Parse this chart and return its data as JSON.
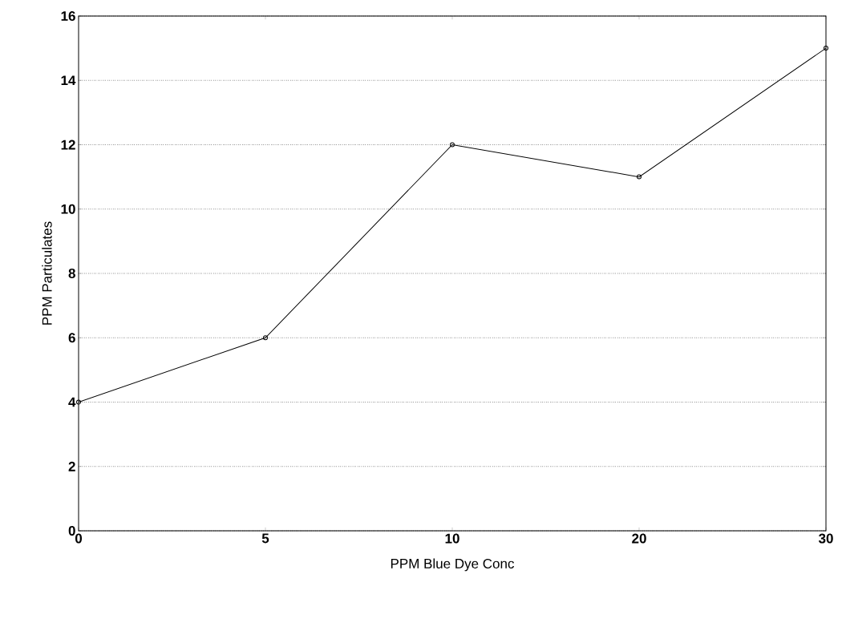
{
  "chart_data": {
    "type": "line",
    "xlabel": "PPM Blue Dye Conc",
    "ylabel": "PPM Particulates",
    "categories": [
      "0",
      "5",
      "10",
      "20",
      "30"
    ],
    "values": [
      4,
      6,
      12,
      11,
      15
    ],
    "color": "#000000",
    "ylim": [
      0,
      16
    ],
    "yticks": [
      0,
      2,
      4,
      6,
      8,
      10,
      12,
      14,
      16
    ],
    "grid": "y",
    "marker": "circle",
    "line_style": "solid"
  }
}
